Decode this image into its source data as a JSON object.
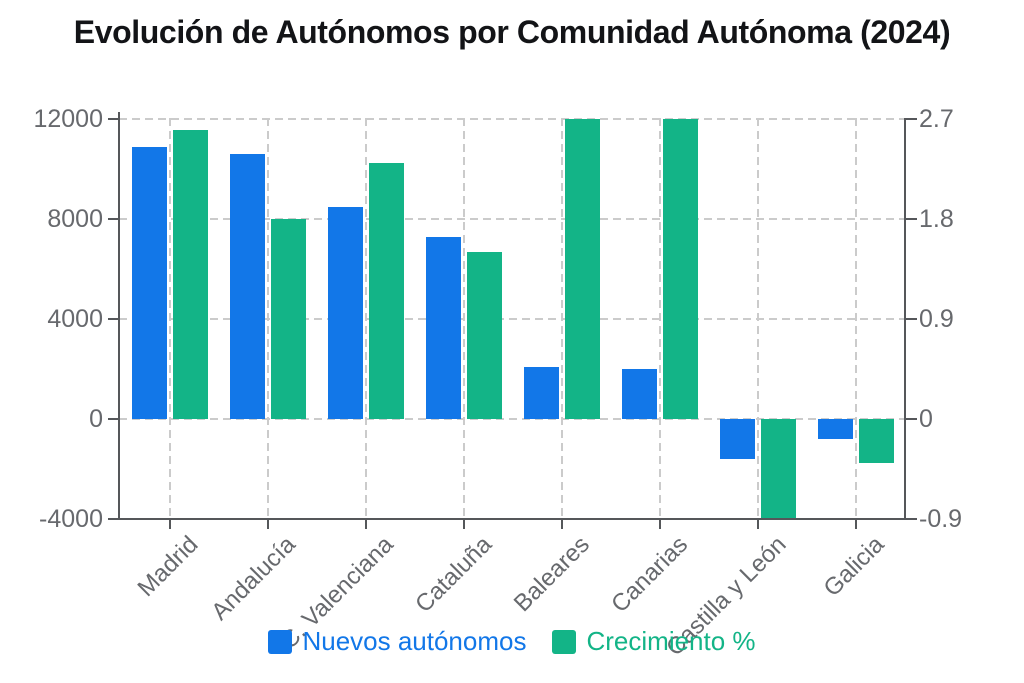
{
  "title": "Evolución de Autónomos por Comunidad Autónoma (2024)",
  "colors": {
    "blue": "#1277e8",
    "green": "#13b487",
    "axis_line": "#55575a",
    "grid_line": "#cbcbcb",
    "tick_text": "#67696d",
    "title_text": "#131417",
    "background": "#ffffff"
  },
  "legend": {
    "items": [
      {
        "label": "Nuevos autónomos",
        "color_key": "blue"
      },
      {
        "label": "Crecimiento %",
        "color_key": "green"
      }
    ]
  },
  "chart_data": {
    "type": "bar",
    "title": "Evolución de Autónomos por Comunidad Autónoma (2024)",
    "categories": [
      "Madrid",
      "Andalucía",
      "C. Valenciana",
      "Cataluña",
      "Baleares",
      "Canarias",
      "Castilla y León",
      "Galicia"
    ],
    "series": [
      {
        "name": "Nuevos autónomos",
        "axis": "left",
        "color_key": "blue",
        "values": [
          10900,
          10600,
          8500,
          7300,
          2100,
          2000,
          -1600,
          -800
        ]
      },
      {
        "name": "Crecimiento %",
        "axis": "right",
        "color_key": "green",
        "values": [
          2.6,
          1.8,
          2.3,
          1.5,
          2.7,
          2.7,
          -0.9,
          -0.4
        ]
      }
    ],
    "left_axis": {
      "ticks": [
        12000,
        8000,
        4000,
        0,
        -4000
      ],
      "tick_labels": [
        "12000",
        "8000",
        "4000",
        "0",
        "-4000"
      ],
      "range": [
        -4000,
        12000
      ]
    },
    "right_axis": {
      "ticks": [
        2.7,
        1.8,
        0.9,
        0,
        -0.9
      ],
      "tick_labels": [
        "2.7",
        "1.8",
        "0.9",
        "0",
        "-0.9"
      ],
      "range": [
        -0.9,
        2.7
      ]
    },
    "grid": true,
    "grid_style": "dashed",
    "legend_position": "bottom",
    "bar_orientation": "vertical"
  }
}
